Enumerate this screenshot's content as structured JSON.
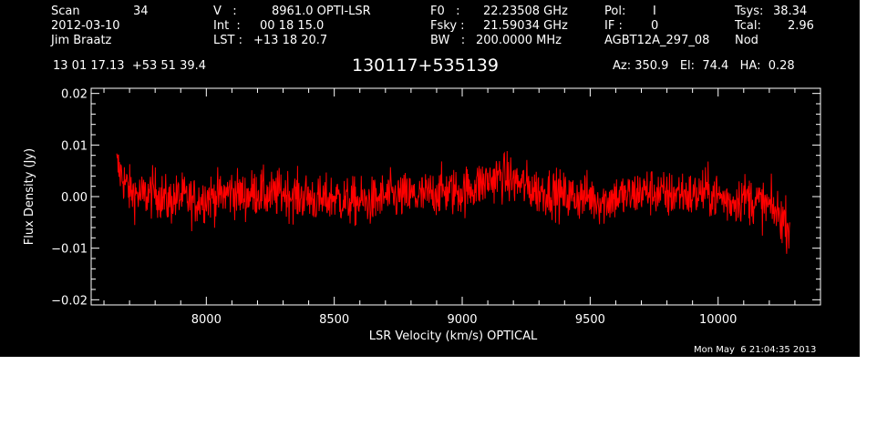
{
  "header": {
    "col1": {
      "scan_label": "Scan",
      "scan_value": "34",
      "date": "2012-03-10",
      "observer": "Jim Braatz"
    },
    "col2": {
      "v_label": "V   :",
      "v_value": "8961.0 OPTI-LSR",
      "int_label": "Int  :",
      "int_value": "00 18 15.0",
      "lst_label": "LST :",
      "lst_value": "+13 18 20.7"
    },
    "col3": {
      "f0_label": "F0   :",
      "f0_value": "22.23508 GHz",
      "fsky_label": "Fsky :",
      "fsky_value": "21.59034 GHz",
      "bw_label": "BW   :",
      "bw_value": "200.0000 MHz"
    },
    "col4": {
      "pol_label": "Pol:",
      "pol_value": "I",
      "if_label": "IF :",
      "if_value": "0",
      "project": "AGBT12A_297_08"
    },
    "col5": {
      "tsys_label": "Tsys:",
      "tsys_value": "38.34",
      "tcal_label": "Tcal:",
      "tcal_value": "2.96",
      "mode": "Nod"
    },
    "coords": "13 01 17.13  +53 51 39.4",
    "source": "130117+535139",
    "az_el_ha": "Az: 350.9   El:  74.4   HA:  0.28",
    "timestamp": "Mon May  6 21:04:35 2013"
  },
  "colors": {
    "background": "#000000",
    "axes": "#ffffff",
    "trace": "#ff0000",
    "page": "#ffffff"
  },
  "chart_data": {
    "type": "line",
    "title": "130117+535139",
    "xlabel": "LSR Velocity (km/s) OPTICAL",
    "ylabel": "Flux Density (Jy)",
    "xlim": [
      7550,
      10400
    ],
    "ylim": [
      -0.021,
      0.021
    ],
    "xticks": [
      8000,
      8500,
      9000,
      9500,
      10000
    ],
    "xtick_labels": [
      "8000",
      "8500",
      "9000",
      "9500",
      "10000"
    ],
    "yticks": [
      -0.02,
      -0.01,
      0.0,
      0.01,
      0.02
    ],
    "ytick_labels": [
      "−0.02",
      "−0.01",
      "0.00",
      "0.01",
      "0.02"
    ],
    "grid": false,
    "series": [
      {
        "color": "#ff0000",
        "x": [
          7650,
          7700,
          7750,
          7800,
          7850,
          7900,
          7950,
          8000,
          8050,
          8100,
          8150,
          8200,
          8250,
          8300,
          8350,
          8400,
          8450,
          8500,
          8550,
          8600,
          8650,
          8700,
          8750,
          8800,
          8850,
          8900,
          8950,
          9000,
          9050,
          9100,
          9150,
          9200,
          9250,
          9300,
          9350,
          9400,
          9450,
          9500,
          9550,
          9600,
          9650,
          9700,
          9750,
          9800,
          9850,
          9900,
          9950,
          10000,
          10050,
          10100,
          10150,
          10200,
          10250,
          10280
        ],
        "y": [
          0.006,
          0.001,
          0.0,
          0.001,
          -0.001,
          0.0,
          -0.001,
          0.0,
          0.0,
          0.001,
          0.0,
          0.001,
          0.0,
          0.001,
          0.0,
          0.0,
          -0.001,
          0.0,
          -0.001,
          -0.001,
          -0.001,
          0.0,
          0.0,
          0.0,
          0.0,
          0.001,
          0.001,
          0.001,
          0.002,
          0.003,
          0.004,
          0.003,
          0.002,
          0.001,
          0.001,
          0.0,
          0.0,
          0.0,
          -0.001,
          0.0,
          0.0,
          0.001,
          0.001,
          0.0,
          0.001,
          0.0,
          0.001,
          0.0,
          -0.001,
          0.0,
          -0.001,
          -0.002,
          -0.004,
          -0.006
        ],
        "noise_amplitude": 0.004
      }
    ]
  }
}
